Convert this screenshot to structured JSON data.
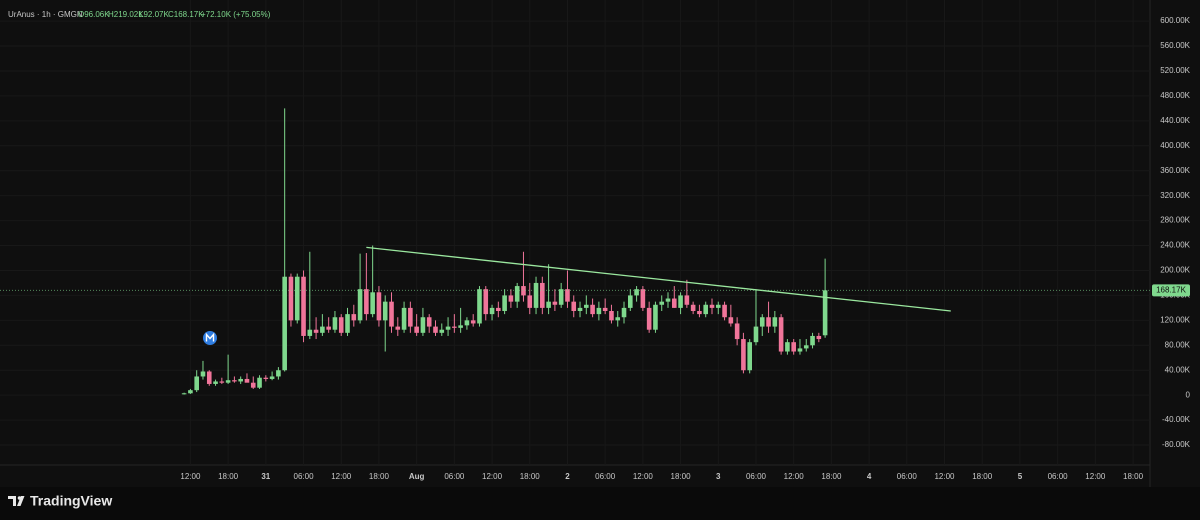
{
  "chart_data": {
    "type": "candlestick",
    "header": {
      "symbol": "UrAnus · 1h · GMGN",
      "open": "O96.06K",
      "high": "H219.02K",
      "low": "L92.07K",
      "close": "C168.17K",
      "change": "+72.10K (+75.05%)"
    },
    "brand": "TradingView",
    "up_color": "#7fd88d",
    "down_color": "#f0759a",
    "grid": true,
    "xlim": [
      -18.3,
      164.7
    ],
    "ylim": [
      -112000,
      621000
    ],
    "xticks": [
      {
        "value": 12,
        "label": "12:00"
      },
      {
        "value": 18,
        "label": "18:00"
      },
      {
        "value": 24,
        "label": "31"
      },
      {
        "value": 30,
        "label": "06:00"
      },
      {
        "value": 36,
        "label": "12:00"
      },
      {
        "value": 42,
        "label": "18:00"
      },
      {
        "value": 48,
        "label": "Aug"
      },
      {
        "value": 54,
        "label": "06:00"
      },
      {
        "value": 60,
        "label": "12:00"
      },
      {
        "value": 66,
        "label": "18:00"
      },
      {
        "value": 72,
        "label": "2"
      },
      {
        "value": 78,
        "label": "06:00"
      },
      {
        "value": 84,
        "label": "12:00"
      },
      {
        "value": 90,
        "label": "18:00"
      },
      {
        "value": 96,
        "label": "3"
      },
      {
        "value": 102,
        "label": "06:00"
      },
      {
        "value": 108,
        "label": "12:00"
      },
      {
        "value": 114,
        "label": "18:00"
      },
      {
        "value": 120,
        "label": "4"
      },
      {
        "value": 126,
        "label": "06:00"
      },
      {
        "value": 132,
        "label": "12:00"
      },
      {
        "value": 138,
        "label": "18:00"
      },
      {
        "value": 144,
        "label": "5"
      },
      {
        "value": 150,
        "label": "06:00"
      },
      {
        "value": 156,
        "label": "12:00"
      },
      {
        "value": 162,
        "label": "18:00"
      }
    ],
    "yticks": [
      {
        "value": 600000,
        "label": "600.00K"
      },
      {
        "value": 560000,
        "label": "560.00K"
      },
      {
        "value": 520000,
        "label": "520.00K"
      },
      {
        "value": 480000,
        "label": "480.00K"
      },
      {
        "value": 440000,
        "label": "440.00K"
      },
      {
        "value": 400000,
        "label": "400.00K"
      },
      {
        "value": 360000,
        "label": "360.00K"
      },
      {
        "value": 320000,
        "label": "320.00K"
      },
      {
        "value": 280000,
        "label": "280.00K"
      },
      {
        "value": 240000,
        "label": "240.00K"
      },
      {
        "value": 200000,
        "label": "200.00K"
      },
      {
        "value": 160000,
        "label": "160.00K"
      },
      {
        "value": 120000,
        "label": "120.00K"
      },
      {
        "value": 80000,
        "label": "80.00K"
      },
      {
        "value": 40000,
        "label": "40.00K"
      },
      0,
      {
        "value": -40000,
        "label": "-40.00K"
      },
      {
        "value": -80000,
        "label": "-80.00K"
      }
    ],
    "x": [
      11,
      12,
      13,
      14,
      15,
      16,
      17,
      18,
      19,
      20,
      21,
      22,
      23,
      24,
      25,
      26,
      27,
      28,
      29,
      30,
      31,
      32,
      33,
      34,
      35,
      36,
      37,
      38,
      39,
      40,
      41,
      42,
      43,
      44,
      45,
      46,
      47,
      48,
      49,
      50,
      51,
      52,
      53,
      54,
      55,
      56,
      57,
      58,
      59,
      60,
      61,
      62,
      63,
      64,
      65,
      66,
      67,
      68,
      69,
      70,
      71,
      72,
      73,
      74,
      75,
      76,
      77,
      78,
      79,
      80,
      81,
      82,
      83,
      84,
      85,
      86,
      87,
      88,
      89,
      90,
      91,
      92,
      93,
      94,
      95,
      96,
      97,
      98,
      99,
      100,
      101,
      102,
      103,
      104,
      105,
      106,
      107,
      108,
      109,
      110,
      111,
      112,
      113
    ],
    "open": [
      2000,
      3000,
      8000,
      30000,
      38000,
      18000,
      22000,
      20000,
      24000,
      22000,
      26000,
      20000,
      12000,
      28000,
      26000,
      30000,
      40000,
      190000,
      120000,
      190000,
      95000,
      105000,
      100000,
      110000,
      105000,
      125000,
      100000,
      130000,
      120000,
      170000,
      130000,
      165000,
      120000,
      150000,
      110000,
      105000,
      140000,
      110000,
      100000,
      125000,
      110000,
      100000,
      105000,
      110000,
      108000,
      112000,
      120000,
      115000,
      170000,
      130000,
      140000,
      135000,
      160000,
      150000,
      175000,
      160000,
      140000,
      180000,
      140000,
      150000,
      145000,
      170000,
      150000,
      135000,
      140000,
      145000,
      130000,
      140000,
      135000,
      120000,
      125000,
      140000,
      160000,
      170000,
      140000,
      105000,
      145000,
      150000,
      155000,
      140000,
      160000,
      145000,
      135000,
      130000,
      145000,
      140000,
      145000,
      125000,
      115000,
      90000,
      40000,
      85000,
      110000,
      125000,
      110000,
      125000,
      70000,
      85000,
      70000,
      75000,
      80000,
      95000,
      96060
    ],
    "high": [
      4000,
      10000,
      40000,
      55000,
      40000,
      25000,
      28000,
      65000,
      30000,
      30000,
      35000,
      30000,
      32000,
      32000,
      38000,
      45000,
      460000,
      195000,
      195000,
      200000,
      230000,
      125000,
      130000,
      125000,
      135000,
      130000,
      140000,
      145000,
      227000,
      228000,
      240000,
      175000,
      160000,
      165000,
      125000,
      150000,
      150000,
      130000,
      140000,
      130000,
      120000,
      115000,
      125000,
      130000,
      140000,
      125000,
      130000,
      175000,
      175000,
      145000,
      150000,
      170000,
      170000,
      180000,
      230000,
      180000,
      190000,
      190000,
      210000,
      170000,
      180000,
      200000,
      160000,
      150000,
      160000,
      155000,
      150000,
      155000,
      145000,
      135000,
      150000,
      170000,
      175000,
      175000,
      150000,
      150000,
      160000,
      165000,
      175000,
      165000,
      185000,
      150000,
      145000,
      150000,
      155000,
      150000,
      150000,
      145000,
      125000,
      100000,
      90000,
      170000,
      130000,
      150000,
      135000,
      130000,
      90000,
      90000,
      90000,
      90000,
      100000,
      100000,
      219020
    ],
    "low": [
      1000,
      2000,
      5000,
      25000,
      15000,
      15000,
      18000,
      18000,
      20000,
      18000,
      22000,
      10000,
      10000,
      22000,
      24000,
      25000,
      38000,
      110000,
      115000,
      85000,
      90000,
      90000,
      95000,
      100000,
      100000,
      95000,
      95000,
      110000,
      115000,
      120000,
      125000,
      110000,
      70000,
      100000,
      95000,
      100000,
      100000,
      95000,
      95000,
      100000,
      95000,
      95000,
      95000,
      100000,
      100000,
      105000,
      110000,
      110000,
      120000,
      120000,
      125000,
      130000,
      140000,
      140000,
      150000,
      130000,
      130000,
      130000,
      130000,
      135000,
      140000,
      140000,
      125000,
      125000,
      130000,
      125000,
      120000,
      130000,
      115000,
      110000,
      115000,
      135000,
      150000,
      135000,
      100000,
      100000,
      135000,
      140000,
      140000,
      130000,
      140000,
      130000,
      125000,
      125000,
      130000,
      130000,
      120000,
      110000,
      80000,
      35000,
      35000,
      80000,
      95000,
      100000,
      100000,
      65000,
      65000,
      65000,
      65000,
      70000,
      75000,
      85000,
      92070
    ],
    "close": [
      3000,
      8000,
      30000,
      38000,
      18000,
      22000,
      20000,
      24000,
      22000,
      26000,
      20000,
      12000,
      28000,
      26000,
      30000,
      40000,
      190000,
      120000,
      190000,
      95000,
      105000,
      100000,
      110000,
      105000,
      125000,
      100000,
      130000,
      120000,
      170000,
      130000,
      165000,
      120000,
      150000,
      110000,
      105000,
      140000,
      110000,
      100000,
      125000,
      110000,
      100000,
      105000,
      110000,
      108000,
      112000,
      120000,
      115000,
      170000,
      130000,
      140000,
      135000,
      160000,
      150000,
      175000,
      160000,
      140000,
      180000,
      140000,
      150000,
      145000,
      170000,
      150000,
      135000,
      140000,
      145000,
      130000,
      140000,
      135000,
      120000,
      125000,
      140000,
      160000,
      170000,
      140000,
      105000,
      145000,
      150000,
      155000,
      140000,
      160000,
      145000,
      135000,
      130000,
      145000,
      140000,
      145000,
      125000,
      115000,
      90000,
      40000,
      85000,
      110000,
      125000,
      110000,
      125000,
      70000,
      85000,
      70000,
      75000,
      80000,
      95000,
      90000,
      168170
    ],
    "last_price": {
      "value": 168170,
      "label": "168.17K"
    },
    "trendline": {
      "x": [
        40,
        133
      ],
      "y": [
        237000,
        135000
      ],
      "color": "#9be89f"
    }
  }
}
